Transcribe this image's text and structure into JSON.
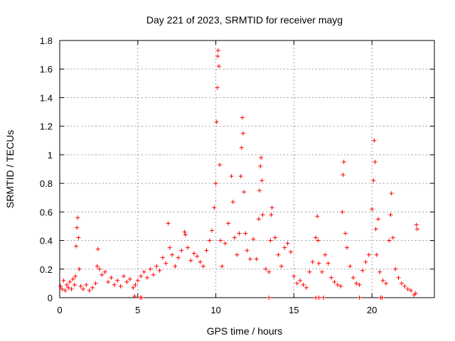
{
  "chart_data": {
    "type": "scatter",
    "title": "Day 221 of 2023, SRMTID for receiver mayg",
    "xlabel": "GPS time / hours",
    "ylabel": "SRMTID / TECUs",
    "xlim": [
      0,
      24
    ],
    "ylim": [
      0,
      1.8
    ],
    "xticks": [
      0,
      5,
      10,
      15,
      20
    ],
    "xtick_labels": [
      "0",
      "5",
      "10",
      "15",
      "20"
    ],
    "yticks": [
      0,
      0.2,
      0.4,
      0.6,
      0.8,
      1.0,
      1.2,
      1.4,
      1.6,
      1.8
    ],
    "ytick_labels": [
      "0",
      "0.2",
      "0.4",
      "0.6",
      "0.8",
      "1",
      "1.2",
      "1.4",
      "1.6",
      "1.8"
    ],
    "grid": true,
    "marker": "plus",
    "color": "#ff0000",
    "series": [
      {
        "name": "SRMTID",
        "x": [
          0.05,
          0.15,
          0.25,
          0.35,
          0.45,
          0.55,
          0.65,
          0.75,
          0.85,
          0.95,
          1.0,
          1.05,
          1.1,
          1.15,
          1.2,
          1.25,
          1.35,
          1.5,
          1.7,
          1.9,
          2.1,
          2.3,
          2.4,
          2.45,
          2.55,
          2.7,
          2.9,
          3.1,
          3.3,
          3.5,
          3.7,
          3.9,
          4.1,
          4.3,
          4.5,
          4.7,
          4.85,
          5.0,
          5.2,
          5.4,
          5.6,
          5.8,
          6.0,
          6.2,
          6.4,
          6.6,
          6.8,
          6.95,
          7.05,
          7.2,
          7.4,
          7.6,
          7.8,
          8.0,
          8.05,
          8.2,
          8.4,
          8.6,
          8.8,
          9.0,
          9.2,
          9.4,
          9.6,
          9.75,
          9.9,
          10.0,
          10.05,
          10.1,
          10.12,
          10.15,
          10.2,
          10.25,
          10.3,
          10.4,
          10.6,
          10.8,
          11.0,
          11.1,
          11.2,
          11.35,
          11.5,
          11.6,
          11.65,
          11.7,
          11.75,
          11.8,
          11.9,
          12.0,
          12.2,
          12.4,
          12.6,
          12.75,
          12.8,
          12.85,
          12.9,
          12.95,
          13.0,
          13.2,
          13.4,
          13.5,
          13.55,
          13.6,
          13.8,
          14.0,
          14.2,
          14.4,
          14.6,
          14.8,
          15.0,
          15.2,
          15.4,
          15.6,
          15.8,
          16.0,
          16.2,
          16.4,
          16.5,
          16.55,
          16.6,
          16.8,
          17.0,
          17.2,
          17.4,
          17.6,
          17.8,
          18.0,
          18.1,
          18.15,
          18.2,
          18.3,
          18.4,
          18.6,
          18.8,
          19.0,
          19.2,
          19.4,
          19.6,
          19.8,
          20.0,
          20.1,
          20.15,
          20.2,
          20.25,
          20.3,
          20.4,
          20.5,
          20.7,
          20.9,
          21.1,
          21.2,
          21.25,
          21.35,
          21.5,
          21.7,
          21.9,
          22.1,
          22.3,
          22.5,
          22.7,
          22.8,
          22.85,
          22.9,
          4.8,
          5.15,
          5.25,
          13.4,
          16.4,
          16.6,
          16.9,
          19.2,
          20.55,
          20.65
        ],
        "y": [
          0.08,
          0.06,
          0.12,
          0.05,
          0.09,
          0.07,
          0.11,
          0.06,
          0.13,
          0.09,
          0.15,
          0.36,
          0.49,
          0.56,
          0.42,
          0.2,
          0.08,
          0.06,
          0.09,
          0.05,
          0.07,
          0.1,
          0.22,
          0.34,
          0.2,
          0.16,
          0.18,
          0.11,
          0.14,
          0.09,
          0.12,
          0.08,
          0.15,
          0.11,
          0.13,
          0.07,
          0.09,
          0.12,
          0.15,
          0.18,
          0.14,
          0.2,
          0.16,
          0.22,
          0.19,
          0.28,
          0.24,
          0.52,
          0.35,
          0.3,
          0.22,
          0.28,
          0.33,
          0.46,
          0.44,
          0.35,
          0.26,
          0.31,
          0.29,
          0.25,
          0.22,
          0.33,
          0.4,
          0.47,
          0.63,
          0.8,
          1.23,
          1.47,
          1.69,
          1.73,
          1.62,
          0.93,
          0.4,
          0.22,
          0.38,
          0.52,
          0.85,
          0.67,
          0.42,
          0.3,
          0.45,
          0.85,
          1.05,
          1.26,
          1.15,
          0.74,
          0.45,
          0.33,
          0.27,
          0.41,
          0.27,
          0.55,
          0.75,
          0.92,
          0.98,
          0.82,
          0.58,
          0.2,
          0.18,
          0.4,
          0.58,
          0.63,
          0.42,
          0.3,
          0.22,
          0.35,
          0.38,
          0.32,
          0.15,
          0.1,
          0.12,
          0.09,
          0.07,
          0.18,
          0.25,
          0.42,
          0.57,
          0.4,
          0.24,
          0.18,
          0.3,
          0.24,
          0.14,
          0.11,
          0.09,
          0.08,
          0.6,
          0.86,
          0.95,
          0.45,
          0.35,
          0.22,
          0.14,
          0.1,
          0.09,
          0.19,
          0.25,
          0.3,
          0.62,
          0.82,
          1.1,
          0.95,
          0.48,
          0.3,
          0.55,
          0.18,
          0.12,
          0.1,
          0.4,
          0.58,
          0.73,
          0.42,
          0.2,
          0.14,
          0.1,
          0.08,
          0.06,
          0.05,
          0.02,
          0.03,
          0.51,
          0.48,
          0.01,
          0.0,
          0.0,
          0.0,
          0.0,
          0.0,
          0.0,
          0.0,
          0.0,
          0.0
        ]
      }
    ]
  }
}
